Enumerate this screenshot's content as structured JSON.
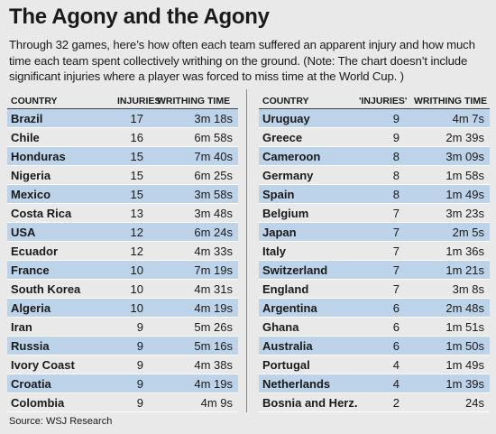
{
  "title": "The Agony and the Agony",
  "subtitle": "Through 32 games, here’s how often each team suffered an apparent injury and how much time each team spent collectively writhing on the ground. (Note: The chart doesn’t include significant injuries where a player was forced to miss time at the World Cup. )",
  "source": "Source: WSJ Research",
  "chart_data": {
    "type": "table",
    "title": "The Agony and the Agony",
    "tables": [
      {
        "headers": [
          "COUNTRY",
          "INJURIES",
          "WRITHING TIME"
        ],
        "rows": [
          [
            "Brazil",
            "17",
            "3m 18s"
          ],
          [
            "Chile",
            "16",
            "6m 58s"
          ],
          [
            "Honduras",
            "15",
            "7m 40s"
          ],
          [
            "Nigeria",
            "15",
            "6m 25s"
          ],
          [
            "Mexico",
            "15",
            "3m 58s"
          ],
          [
            "Costa Rica",
            "13",
            "3m 48s"
          ],
          [
            "USA",
            "12",
            "6m 24s"
          ],
          [
            "Ecuador",
            "12",
            "4m 33s"
          ],
          [
            "France",
            "10",
            "7m 19s"
          ],
          [
            "South Korea",
            "10",
            "4m 31s"
          ],
          [
            "Algeria",
            "10",
            "4m 19s"
          ],
          [
            "Iran",
            "9",
            "5m 26s"
          ],
          [
            "Russia",
            "9",
            "5m 16s"
          ],
          [
            "Ivory Coast",
            "9",
            "4m 38s"
          ],
          [
            "Croatia",
            "9",
            "4m 19s"
          ],
          [
            "Colombia",
            "9",
            "4m 9s"
          ]
        ]
      },
      {
        "headers": [
          "COUNTRY",
          "'INJURIES'",
          "WRITHING TIME"
        ],
        "rows": [
          [
            "Uruguay",
            "9",
            "4m 7s"
          ],
          [
            "Greece",
            "9",
            "2m 39s"
          ],
          [
            "Cameroon",
            "8",
            "3m 09s"
          ],
          [
            "Germany",
            "8",
            "1m 58s"
          ],
          [
            "Spain",
            "8",
            "1m 49s"
          ],
          [
            "Belgium",
            "7",
            "3m 23s"
          ],
          [
            "Japan",
            "7",
            "2m 5s"
          ],
          [
            "Italy",
            "7",
            "1m 36s"
          ],
          [
            "Switzerland",
            "7",
            "1m 21s"
          ],
          [
            "England",
            "7",
            "3m 8s"
          ],
          [
            "Argentina",
            "6",
            "2m 48s"
          ],
          [
            "Ghana",
            "6",
            "1m 51s"
          ],
          [
            "Australia",
            "6",
            "1m 50s"
          ],
          [
            "Portugal",
            "4",
            "1m 49s"
          ],
          [
            "Netherlands",
            "4",
            "1m 39s"
          ],
          [
            "Bosnia and Herz.",
            "2",
            "24s"
          ]
        ]
      }
    ]
  },
  "colors": {
    "background": "#e9e9e9",
    "stripe": "#bcd3e9",
    "text": "#1a1a1a"
  }
}
